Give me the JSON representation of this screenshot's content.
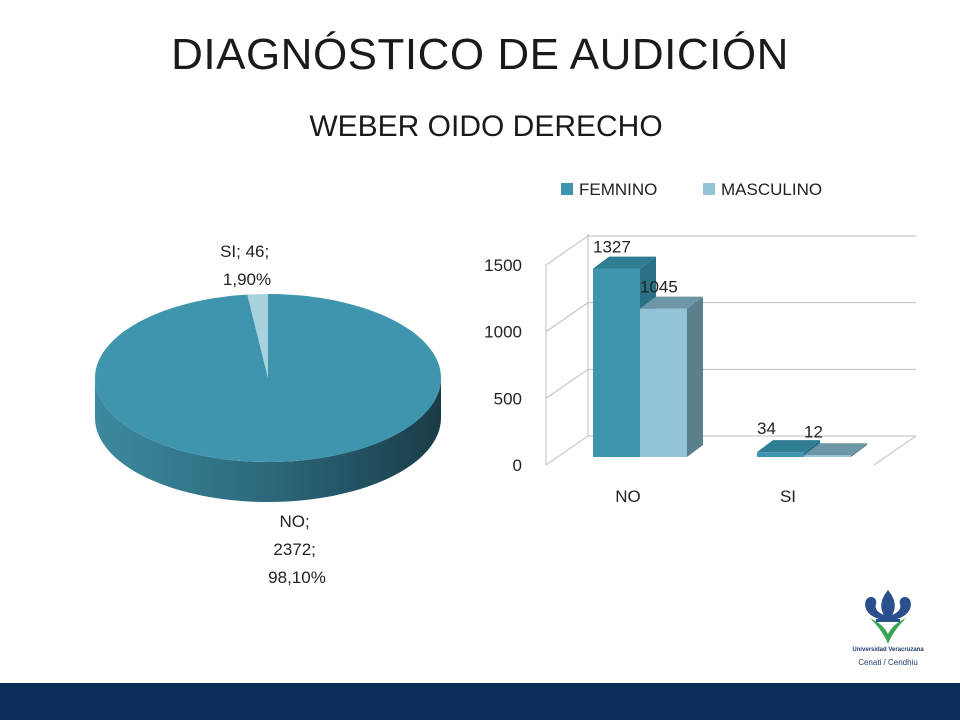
{
  "title": "DIAGNÓSTICO DE AUDICIÓN",
  "subtitle": "WEBER OIDO DERECHO",
  "colors": {
    "femnino": "#3f95ad",
    "masculino": "#93c4d6",
    "pie_main": "#3f95ad",
    "pie_small": "#a9d2df",
    "footer": "#0c2e5c"
  },
  "logo": {
    "line1": "Universidad Veracruzana",
    "line2": "Cenati / Cendhiu"
  },
  "chart_data": [
    {
      "type": "pie",
      "slices": [
        {
          "label": "NO",
          "value": 2372,
          "percent": "98,10%",
          "label_lines": [
            "NO;",
            "2372;",
            "98,10%"
          ]
        },
        {
          "label": "SI",
          "value": 46,
          "percent": "1,90%",
          "label_lines": [
            "SI; 46;",
            "1,90%"
          ]
        }
      ]
    },
    {
      "type": "bar",
      "categories": [
        "NO",
        "SI"
      ],
      "series": [
        {
          "name": "FEMNINO",
          "values": [
            1327,
            34
          ],
          "value_labels": [
            "1327",
            "34"
          ]
        },
        {
          "name": "MASCULINO",
          "values": [
            1045,
            12
          ],
          "value_labels": [
            "1045",
            "12"
          ]
        }
      ],
      "ylim": [
        0,
        1500
      ],
      "yticks": [
        "0",
        "500",
        "1000",
        "1500"
      ],
      "legend": "top",
      "grid": true
    }
  ]
}
